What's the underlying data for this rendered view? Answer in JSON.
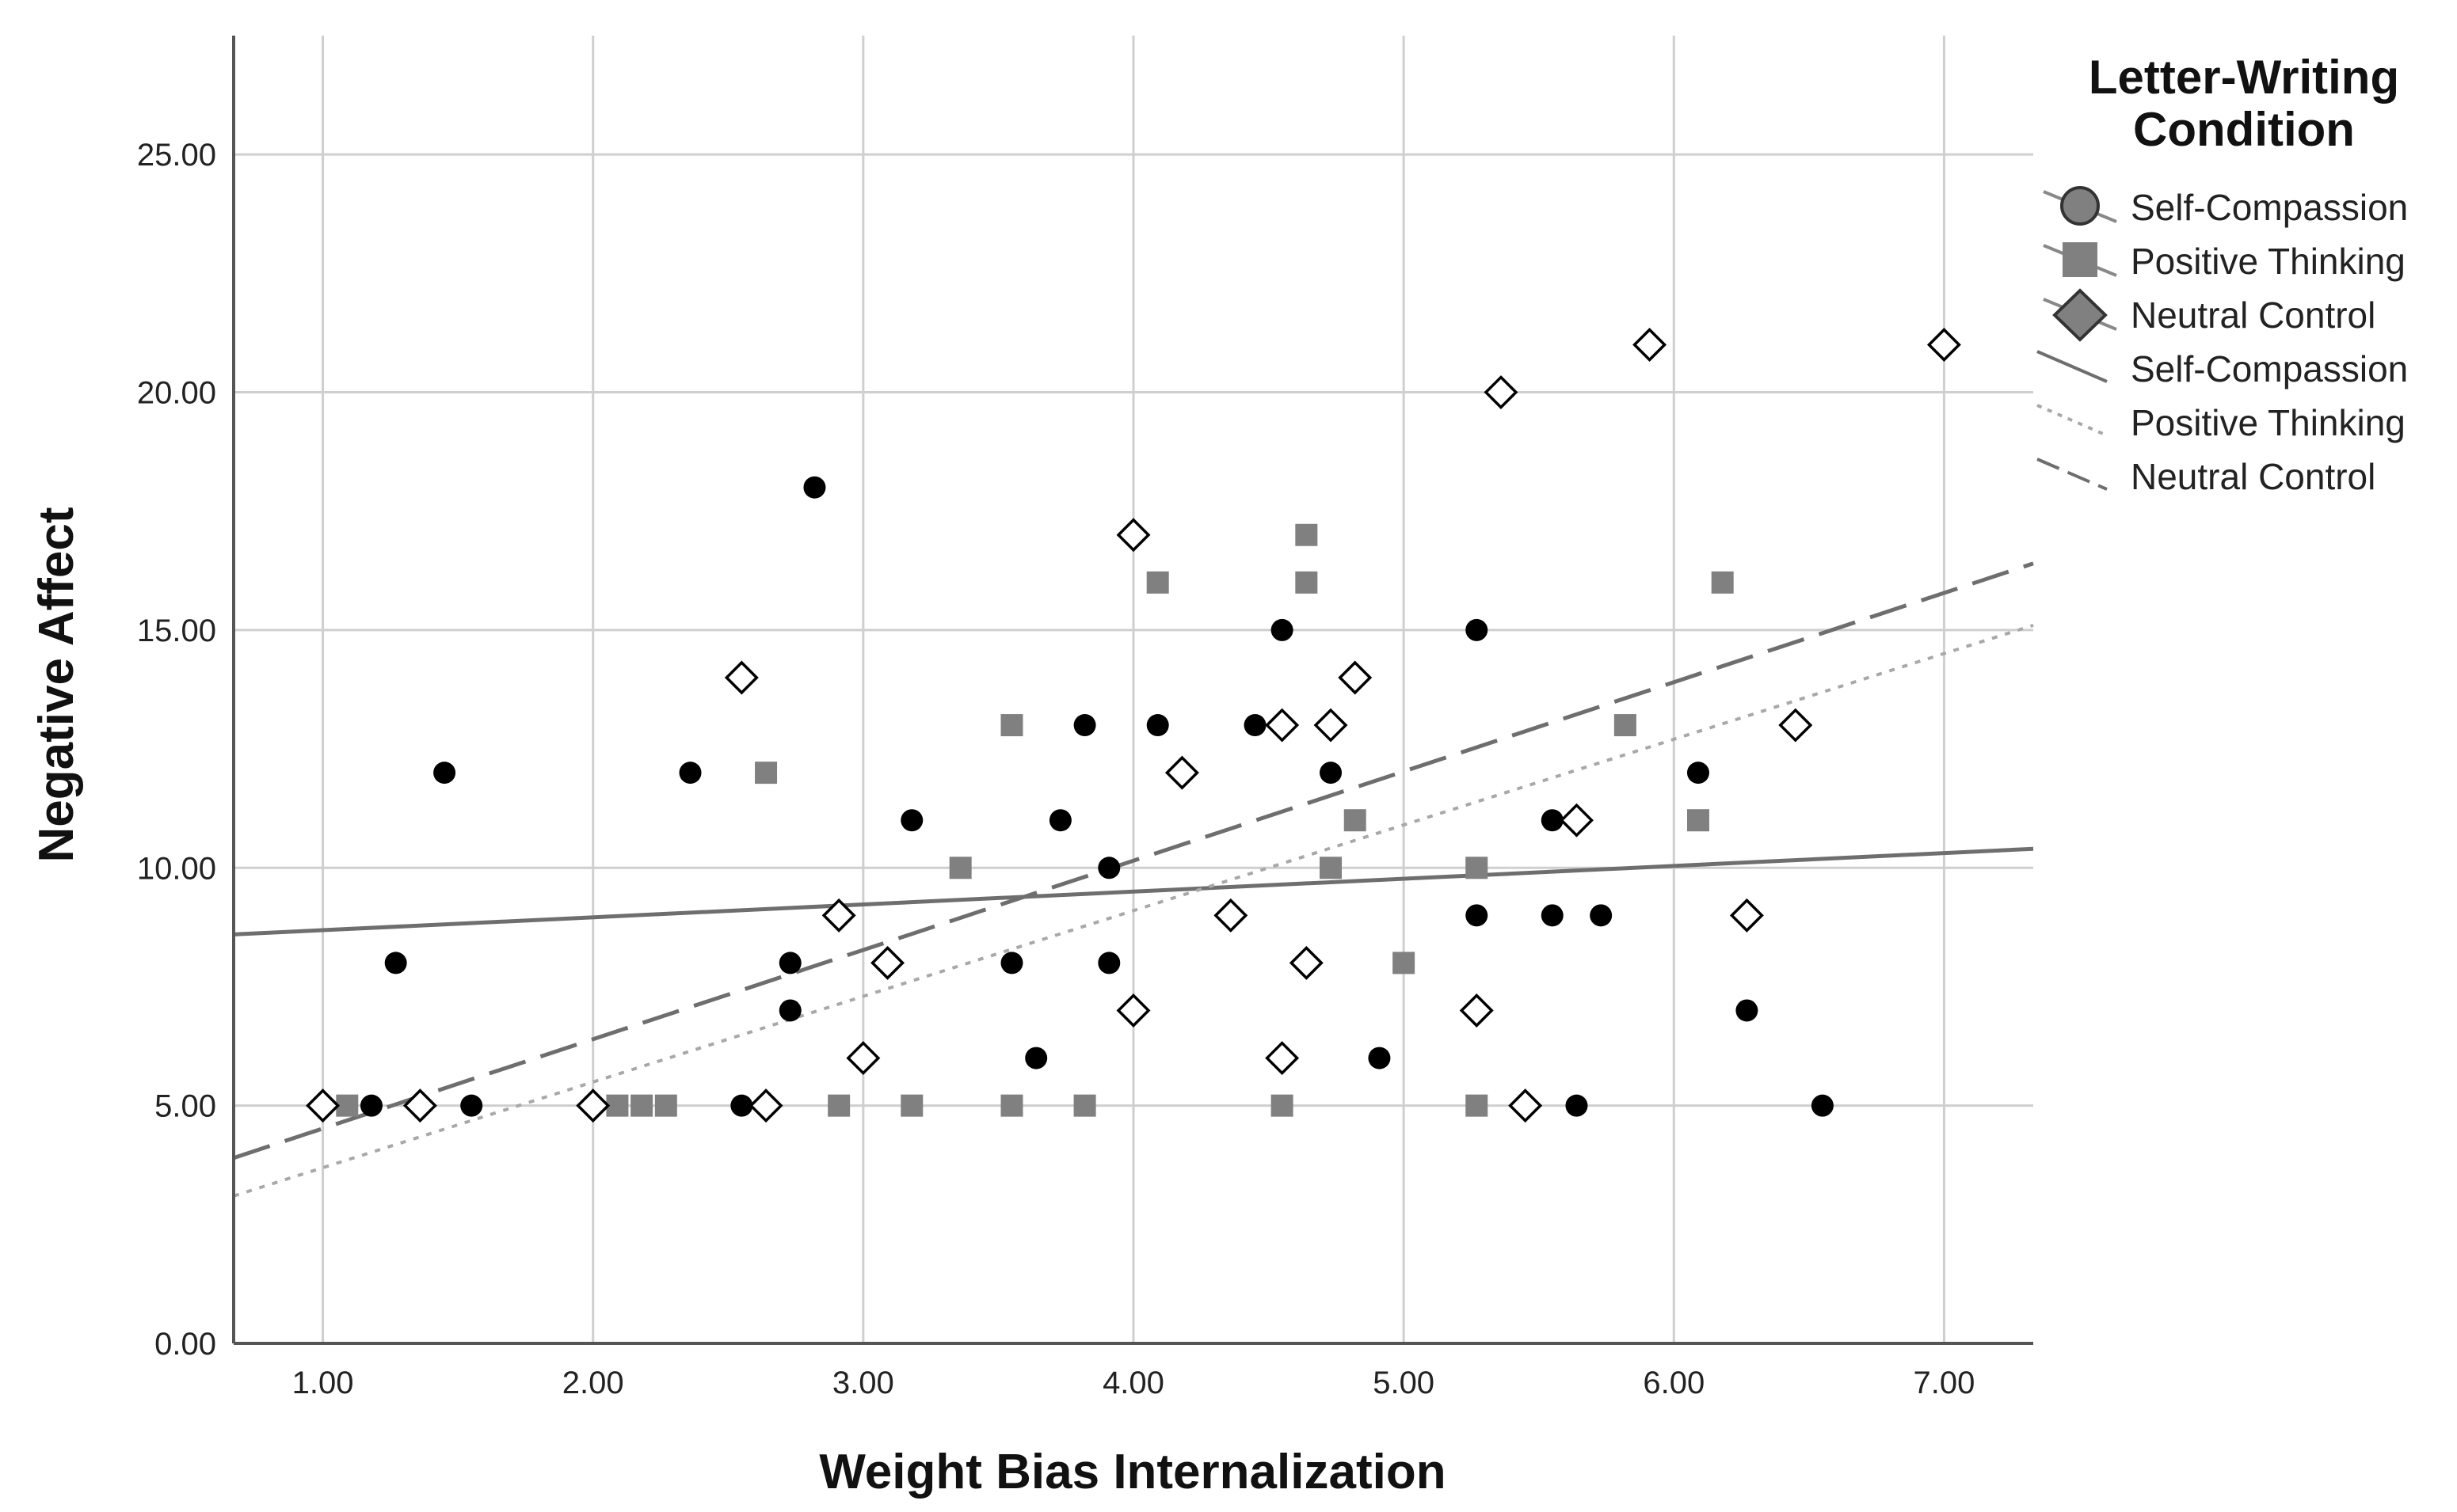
{
  "chart_data": {
    "type": "scatter",
    "xlabel": "Weight Bias Internalization",
    "ylabel": "Negative Affect",
    "xlim": [
      0.67,
      7.33
    ],
    "ylim": [
      0,
      27.5
    ],
    "xticks": [
      "1.00",
      "2.00",
      "3.00",
      "4.00",
      "5.00",
      "6.00",
      "7.00"
    ],
    "yticks": [
      "0.00",
      "5.00",
      "10.00",
      "15.00",
      "20.00",
      "25.00"
    ],
    "grid": true,
    "legend": {
      "title_line1": "Letter-Writing",
      "title_line2": "Condition",
      "position": "right",
      "entries": [
        {
          "label": "Self-Compassion",
          "kind": "marker",
          "marker": "circle"
        },
        {
          "label": "Positive Thinking",
          "kind": "marker",
          "marker": "square"
        },
        {
          "label": "Neutral Control",
          "kind": "marker",
          "marker": "diamond"
        },
        {
          "label": "Self-Compassion",
          "kind": "line",
          "dash": "solid"
        },
        {
          "label": "Positive Thinking",
          "kind": "line",
          "dash": "dotted"
        },
        {
          "label": "Neutral Control",
          "kind": "line",
          "dash": "dashed"
        }
      ]
    },
    "series": [
      {
        "name": "Self-Compassion",
        "marker": "circle",
        "color": "#000000",
        "points": [
          [
            1.18,
            5
          ],
          [
            1.27,
            8
          ],
          [
            1.45,
            12
          ],
          [
            1.55,
            5
          ],
          [
            2.36,
            12
          ],
          [
            2.55,
            5
          ],
          [
            2.73,
            8
          ],
          [
            2.73,
            7
          ],
          [
            2.82,
            18
          ],
          [
            3.18,
            11
          ],
          [
            3.55,
            8
          ],
          [
            3.64,
            6
          ],
          [
            3.73,
            11
          ],
          [
            3.82,
            13
          ],
          [
            3.91,
            10
          ],
          [
            3.91,
            8
          ],
          [
            4.09,
            13
          ],
          [
            4.45,
            13
          ],
          [
            4.55,
            15
          ],
          [
            4.73,
            12
          ],
          [
            4.91,
            6
          ],
          [
            5.27,
            15
          ],
          [
            5.27,
            9
          ],
          [
            5.55,
            11
          ],
          [
            5.55,
            9
          ],
          [
            5.64,
            5
          ],
          [
            5.73,
            9
          ],
          [
            6.09,
            12
          ],
          [
            6.27,
            7
          ],
          [
            6.55,
            5
          ]
        ]
      },
      {
        "name": "Positive Thinking",
        "marker": "square",
        "color": "#808080",
        "points": [
          [
            1.09,
            5
          ],
          [
            2.09,
            5
          ],
          [
            2.18,
            5
          ],
          [
            2.27,
            5
          ],
          [
            2.64,
            12
          ],
          [
            2.91,
            5
          ],
          [
            3.18,
            5
          ],
          [
            3.36,
            10
          ],
          [
            3.55,
            5
          ],
          [
            3.55,
            13
          ],
          [
            3.82,
            5
          ],
          [
            4.09,
            16
          ],
          [
            4.55,
            5
          ],
          [
            4.64,
            17
          ],
          [
            4.64,
            16
          ],
          [
            4.73,
            10
          ],
          [
            4.82,
            11
          ],
          [
            5.0,
            8
          ],
          [
            5.27,
            10
          ],
          [
            5.27,
            5
          ],
          [
            5.82,
            13
          ],
          [
            6.09,
            11
          ],
          [
            6.18,
            16
          ]
        ]
      },
      {
        "name": "Neutral Control",
        "marker": "diamond",
        "color": "#ffffff",
        "points": [
          [
            1.0,
            5
          ],
          [
            1.36,
            5
          ],
          [
            2.0,
            5
          ],
          [
            2.55,
            14
          ],
          [
            2.64,
            5
          ],
          [
            2.91,
            9
          ],
          [
            3.0,
            6
          ],
          [
            3.09,
            8
          ],
          [
            4.0,
            17
          ],
          [
            4.0,
            7
          ],
          [
            4.18,
            12
          ],
          [
            4.36,
            9
          ],
          [
            4.55,
            13
          ],
          [
            4.55,
            6
          ],
          [
            4.64,
            8
          ],
          [
            4.73,
            13
          ],
          [
            4.82,
            14
          ],
          [
            5.27,
            7
          ],
          [
            5.36,
            20
          ],
          [
            5.45,
            5
          ],
          [
            5.64,
            11
          ],
          [
            5.91,
            21
          ],
          [
            6.27,
            9
          ],
          [
            6.45,
            13
          ],
          [
            7.0,
            21
          ]
        ]
      }
    ],
    "fit_lines": [
      {
        "name": "Self-Compassion",
        "dash": "solid",
        "x": [
          0.67,
          7.33
        ],
        "y": [
          8.6,
          10.4
        ]
      },
      {
        "name": "Positive Thinking",
        "dash": "dotted",
        "x": [
          0.67,
          7.33
        ],
        "y": [
          3.1,
          15.1
        ]
      },
      {
        "name": "Neutral Control",
        "dash": "dashed",
        "x": [
          0.67,
          7.33
        ],
        "y": [
          3.9,
          16.4
        ]
      }
    ]
  }
}
